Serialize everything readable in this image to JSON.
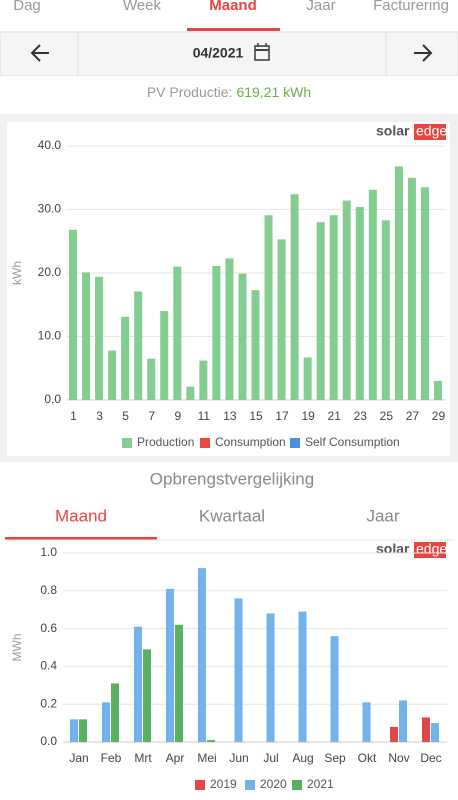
{
  "top_tabs": [
    "Dag",
    "Week",
    "Maand",
    "Jaar",
    "Facturering"
  ],
  "date": "04/2021",
  "pv_label": "PV Productie:",
  "pv_value": "619,21 kWh",
  "section_title": "Opbrengstvergelijking",
  "section_tabs": [
    "Maand",
    "Kwartaal",
    "Jaar"
  ],
  "logo": [
    "solar",
    "edge"
  ],
  "chart_data": [
    {
      "type": "bar",
      "y_label": "kWh",
      "categories": [
        "1",
        null,
        "3",
        null,
        "5",
        null,
        "7",
        null,
        "9",
        null,
        "11",
        null,
        "13",
        null,
        "15",
        null,
        "17",
        null,
        "19",
        null,
        "21",
        null,
        "23",
        null,
        "25",
        null,
        "27",
        null,
        "29"
      ],
      "series": [
        {
          "name": "Production",
          "color": "#82cd8f",
          "values": [
            26.8,
            20.1,
            19.4,
            7.8,
            13.1,
            17.1,
            6.5,
            14.0,
            21.0,
            2.1,
            6.2,
            21.1,
            22.3,
            19.9,
            17.3,
            29.1,
            25.3,
            32.4,
            6.7,
            28.0,
            29.1,
            31.4,
            30.4,
            33.1,
            28.3,
            36.8,
            35.0,
            33.5,
            3.0
          ]
        },
        {
          "name": "Consumption",
          "color": "#e84a3f"
        },
        {
          "name": "Self Consumption",
          "color": "#4a90e2"
        }
      ],
      "ylim": [
        0,
        40
      ],
      "yticks": [
        {
          "value": 0,
          "label": "0.0"
        },
        {
          "value": 10,
          "label": "10.0"
        },
        {
          "value": 20,
          "label": "20.0"
        },
        {
          "value": 30,
          "label": "30.0"
        },
        {
          "value": 40,
          "label": "40.0"
        }
      ],
      "grid": true
    },
    {
      "type": "bar",
      "y_label": "MWh",
      "categories": [
        "Jan",
        "Feb",
        "Mrt",
        "Apr",
        "Mei",
        "Jun",
        "Jul",
        "Aug",
        "Sep",
        "Okt",
        "Nov",
        "Dec"
      ],
      "series": [
        {
          "name": "2019",
          "color": "#e04848",
          "values": [
            null,
            null,
            null,
            null,
            null,
            null,
            null,
            null,
            null,
            null,
            0.08,
            0.13
          ]
        },
        {
          "name": "2020",
          "color": "#74b3ea",
          "values": [
            0.12,
            0.21,
            0.61,
            0.81,
            0.92,
            0.76,
            0.68,
            0.69,
            0.56,
            0.21,
            0.22,
            0.1
          ]
        },
        {
          "name": "2021",
          "color": "#5bb05f",
          "values": [
            0.12,
            0.31,
            0.49,
            0.62,
            0.01,
            null,
            null,
            null,
            null,
            null,
            null,
            null
          ]
        }
      ],
      "ylim": [
        0,
        1.0
      ],
      "yticks": [
        {
          "value": 0,
          "label": "0.0"
        },
        {
          "value": 0.2,
          "label": "0.2"
        },
        {
          "value": 0.4,
          "label": "0.4"
        },
        {
          "value": 0.6,
          "label": "0.6"
        },
        {
          "value": 0.8,
          "label": "0.8"
        },
        {
          "value": 1.0,
          "label": "1.0"
        }
      ],
      "grid": true
    }
  ]
}
